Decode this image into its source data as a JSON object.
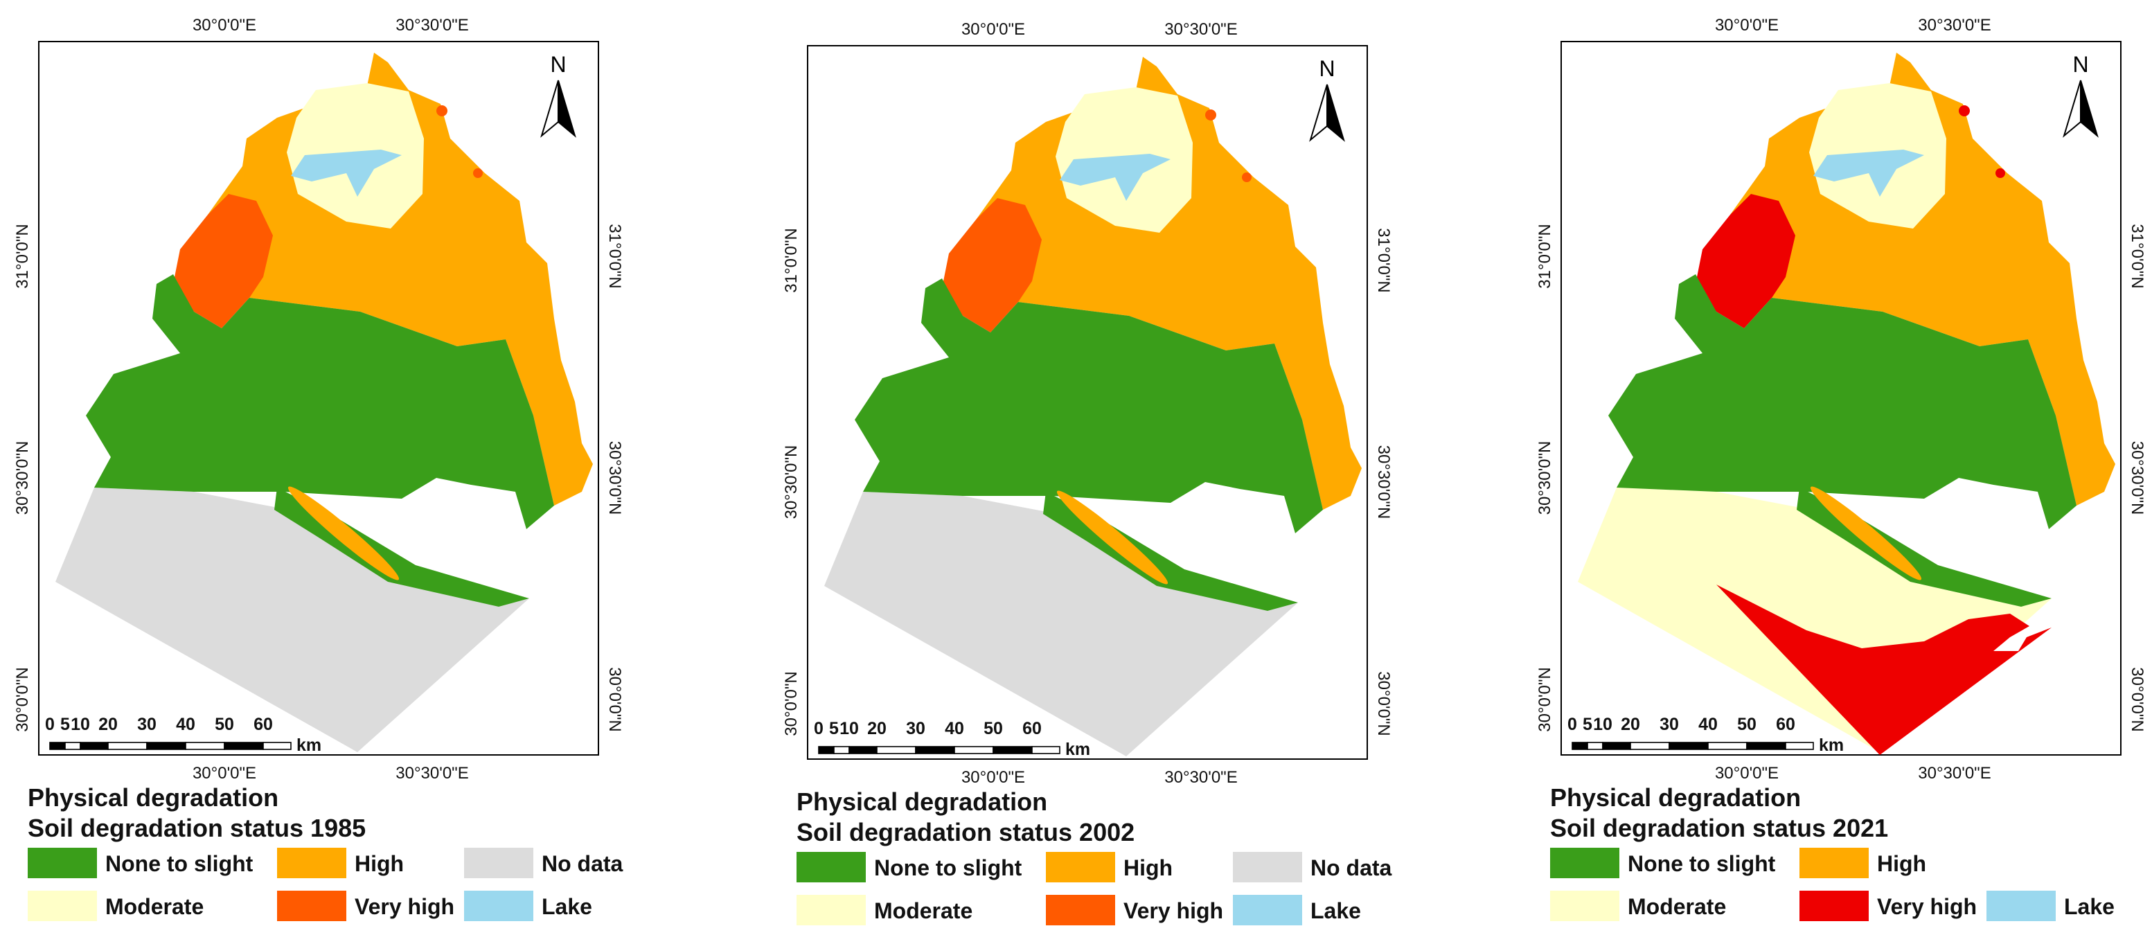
{
  "maps": [
    {
      "heading": "Physical degradation",
      "title": "Soil degradation status 1985",
      "north": "N",
      "top_labels": [
        "30°0'0\"E",
        "30°30'0\"E"
      ],
      "bottom_labels": [
        "30°0'0\"E",
        "30°30'0\"E"
      ],
      "left_labels": [
        "31°0'0\"N",
        "30°30'0\"N",
        "30°0'0\"N"
      ],
      "right_labels": [
        "31°0'0\"N",
        "30°30'0\"N",
        "30°0'0\"N"
      ],
      "scale_ticks": [
        0,
        5,
        10,
        20,
        30,
        40,
        50,
        60
      ],
      "scale_unit": "km",
      "legend": [
        [
          {
            "label": "None to slight",
            "color": "#3a9e1a"
          },
          {
            "label": "High",
            "color": "#ffaa00"
          },
          {
            "label": "No data",
            "color": "#dcdcdc"
          }
        ],
        [
          {
            "label": "Moderate",
            "color": "#ffffc8"
          },
          {
            "label": "Very high",
            "color": "#ff5a00"
          },
          {
            "label": "Lake",
            "color": "#9ad8ee"
          }
        ]
      ]
    },
    {
      "heading": "Physical degradation",
      "title": "Soil degradation status 2002",
      "north": "N",
      "top_labels": [
        "30°0'0\"E",
        "30°30'0\"E"
      ],
      "bottom_labels": [
        "30°0'0\"E",
        "30°30'0\"E"
      ],
      "left_labels": [
        "31°0'0\"N",
        "30°30'0\"N",
        "30°0'0\"N"
      ],
      "right_labels": [
        "31°0'0\"N",
        "30°30'0\"N",
        "30°0'0\"N"
      ],
      "scale_ticks": [
        0,
        5,
        10,
        20,
        30,
        40,
        50,
        60
      ],
      "scale_unit": "km",
      "legend": [
        [
          {
            "label": "None to slight",
            "color": "#3a9e1a"
          },
          {
            "label": "High",
            "color": "#ffaa00"
          },
          {
            "label": "No data",
            "color": "#dcdcdc"
          }
        ],
        [
          {
            "label": "Moderate",
            "color": "#ffffc8"
          },
          {
            "label": "Very high",
            "color": "#ff5a00"
          },
          {
            "label": "Lake",
            "color": "#9ad8ee"
          }
        ]
      ]
    },
    {
      "heading": "Physical degradation",
      "title": "Soil degradation status 2021",
      "north": "N",
      "top_labels": [
        "30°0'0\"E",
        "30°30'0\"E"
      ],
      "bottom_labels": [
        "30°0'0\"E",
        "30°30'0\"E"
      ],
      "left_labels": [
        "31°0'0\"N",
        "30°30'0\"N",
        "30°0'0\"N"
      ],
      "right_labels": [
        "31°0'0\"N",
        "30°30'0\"N",
        "30°0'0\"N"
      ],
      "scale_ticks": [
        0,
        5,
        10,
        20,
        30,
        40,
        50,
        60
      ],
      "scale_unit": "km",
      "legend": [
        [
          {
            "label": "None to slight",
            "color": "#3a9e1a"
          },
          {
            "label": "High",
            "color": "#ffaa00"
          }
        ],
        [
          {
            "label": "Moderate",
            "color": "#ffffc8"
          },
          {
            "label": "Very high",
            "color": "#ee0000"
          },
          {
            "label": "Lake",
            "color": "#9ad8ee"
          }
        ]
      ]
    }
  ]
}
